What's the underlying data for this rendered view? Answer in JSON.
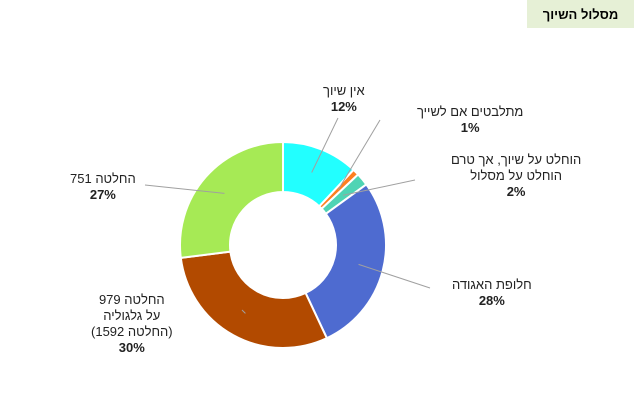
{
  "tag": "מסלול השיוך",
  "chart_data": {
    "type": "pie",
    "donut": true,
    "slices": [
      {
        "name": "אין שיוך",
        "lines": [
          "אין שיוך"
        ],
        "value": 12,
        "label": "12%",
        "color": "#22ffff"
      },
      {
        "name": "מתלבטים אם לשייך",
        "lines": [
          "מתלבטים אם לשייך"
        ],
        "value": 1,
        "label": "1%",
        "color": "#ff7f1f"
      },
      {
        "name": "הוחלט על שיוך, אך טרם הוחלט על מסלול",
        "lines": [
          "הוחלט על שיוך, אך טרם",
          "הוחלט על מסלול"
        ],
        "value": 2,
        "label": "2%",
        "color": "#4fd4b4"
      },
      {
        "name": "חלופת האגודה",
        "lines": [
          "חלופת האגודה"
        ],
        "value": 28,
        "label": "28%",
        "color": "#4e6bd0"
      },
      {
        "name": "החלטה 979 על גלגוליה (החלטה 1592)",
        "lines": [
          "החלטה 979",
          "על גלגוליה",
          "(החלטה 1592)"
        ],
        "value": 30,
        "label": "30%",
        "color": "#b24a00"
      },
      {
        "name": "החלטה 751",
        "lines": [
          "החלטה 751"
        ],
        "value": 27,
        "label": "27%",
        "color": "#a6ea55"
      }
    ]
  }
}
